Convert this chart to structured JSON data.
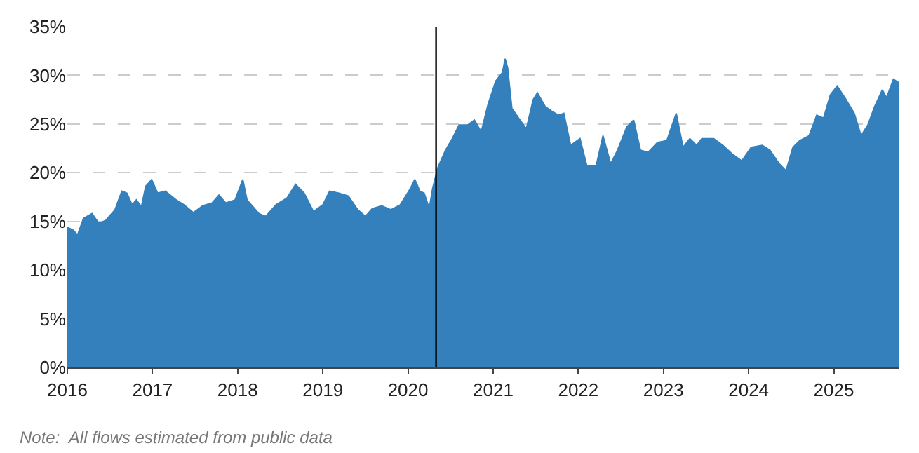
{
  "chart_data": {
    "type": "area",
    "x": [
      2016.0,
      2016.07,
      2016.12,
      2016.19,
      2016.29,
      2016.37,
      2016.45,
      2016.56,
      2016.64,
      2016.7,
      2016.76,
      2016.81,
      2016.87,
      2016.92,
      2016.99,
      2017.06,
      2017.15,
      2017.28,
      2017.37,
      2017.48,
      2017.59,
      2017.7,
      2017.78,
      2017.86,
      2017.97,
      2018.06,
      2018.11,
      2018.25,
      2018.33,
      2018.45,
      2018.58,
      2018.68,
      2018.78,
      2018.89,
      2019.0,
      2019.08,
      2019.19,
      2019.3,
      2019.41,
      2019.5,
      2019.58,
      2019.69,
      2019.8,
      2019.91,
      2020.03,
      2020.08,
      2020.14,
      2020.19,
      2020.25,
      2020.29,
      2020.31,
      2020.35,
      2020.44,
      2020.52,
      2020.6,
      2020.7,
      2020.78,
      2020.86,
      2020.94,
      2021.03,
      2021.11,
      2021.14,
      2021.17,
      2021.22,
      2021.3,
      2021.39,
      2021.47,
      2021.52,
      2021.61,
      2021.69,
      2021.77,
      2021.83,
      2021.91,
      2022.02,
      2022.1,
      2022.21,
      2022.29,
      2022.38,
      2022.46,
      2022.57,
      2022.65,
      2022.73,
      2022.82,
      2022.93,
      2023.04,
      2023.15,
      2023.23,
      2023.31,
      2023.39,
      2023.45,
      2023.59,
      2023.7,
      2023.81,
      2023.92,
      2024.03,
      2024.16,
      2024.25,
      2024.36,
      2024.44,
      2024.52,
      2024.6,
      2024.71,
      2024.8,
      2024.88,
      2024.96,
      2025.04,
      2025.13,
      2025.24,
      2025.32,
      2025.4,
      2025.48,
      2025.57,
      2025.62,
      2025.7,
      2025.77
    ],
    "series": [
      {
        "color": "#3380bd",
        "values": [
          14.4,
          14.1,
          13.6,
          15.3,
          15.8,
          14.8,
          15.1,
          16.2,
          18.1,
          17.9,
          16.7,
          17.2,
          16.5,
          18.6,
          19.3,
          17.9,
          18.1,
          17.2,
          16.7,
          15.9,
          16.6,
          16.9,
          17.7,
          16.9,
          17.2,
          19.3,
          17.2,
          15.8,
          15.5,
          16.7,
          17.4,
          18.8,
          17.9,
          16.0,
          16.7,
          18.1,
          17.9,
          17.6,
          16.2,
          15.5,
          16.3,
          16.6,
          16.2,
          16.7,
          18.4,
          19.3,
          18.1,
          17.9,
          16.3,
          18.4,
          19.1,
          20.5,
          22.3,
          23.5,
          24.9,
          24.9,
          25.4,
          24.2,
          27.0,
          29.4,
          30.3,
          31.7,
          30.8,
          26.6,
          25.6,
          24.5,
          27.5,
          28.2,
          26.8,
          26.3,
          25.9,
          26.1,
          22.8,
          23.5,
          20.7,
          20.7,
          23.8,
          20.9,
          22.3,
          24.7,
          25.4,
          22.3,
          22.1,
          23.1,
          23.3,
          26.1,
          22.6,
          23.5,
          22.8,
          23.5,
          23.5,
          22.8,
          21.9,
          21.2,
          22.6,
          22.8,
          22.3,
          20.9,
          20.2,
          22.6,
          23.3,
          23.8,
          25.9,
          25.6,
          28.0,
          28.9,
          27.7,
          26.1,
          23.8,
          24.9,
          26.8,
          28.5,
          27.7,
          29.6,
          29.2
        ]
      }
    ],
    "xlim": [
      2016,
      2025.77
    ],
    "xticks": [
      2016,
      2017,
      2018,
      2019,
      2020,
      2021,
      2022,
      2023,
      2024,
      2025
    ],
    "ylim": [
      0,
      35
    ],
    "yticks": [
      {
        "value": 0,
        "label": "0%"
      },
      {
        "value": 5,
        "label": "5%"
      },
      {
        "value": 10,
        "label": "10%"
      },
      {
        "value": 15,
        "label": "15%"
      },
      {
        "value": 20,
        "label": "20%"
      },
      {
        "value": 25,
        "label": "25%"
      },
      {
        "value": 30,
        "label": "30%"
      },
      {
        "value": 35,
        "label": "35%"
      }
    ],
    "grid": "y",
    "ref_lines": [
      {
        "axis": "x",
        "value": 2020.33,
        "color": "#000000"
      }
    ],
    "annotations": [
      "Note:  All flows estimated from public data"
    ]
  }
}
